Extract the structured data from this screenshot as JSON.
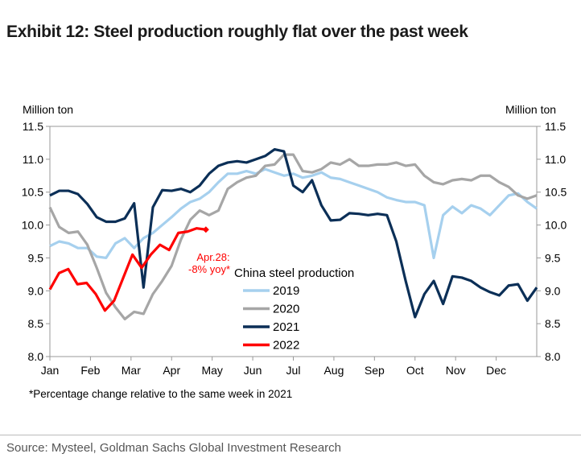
{
  "title": "Exhibit 12: Steel production roughly flat over the past week",
  "footnote": "*Percentage change relative to the same week in 2021",
  "source": "Source: Mysteel, Goldman Sachs Global Investment Research",
  "chart_data": {
    "type": "line",
    "ylabel_left": "Million ton",
    "ylabel_right": "Million ton",
    "ylim": [
      8.0,
      11.5
    ],
    "yticks": [
      "8.0",
      "8.5",
      "9.0",
      "9.5",
      "10.0",
      "10.5",
      "11.0",
      "11.5"
    ],
    "xticks": [
      "Jan",
      "Feb",
      "Mar",
      "Apr",
      "May",
      "Jun",
      "Jul",
      "Aug",
      "Sep",
      "Oct",
      "Nov",
      "Dec"
    ],
    "x_unit": "week of year (0-52)",
    "legend_title": "China steel production",
    "annotation": {
      "line1": "Apr.28:",
      "line2": "-8% yoy*",
      "color": "#ff0000"
    },
    "series": [
      {
        "name": "2019",
        "color": "#a6d0ee",
        "values": [
          9.68,
          9.75,
          9.72,
          9.65,
          9.65,
          9.52,
          9.5,
          9.72,
          9.8,
          9.65,
          9.8,
          9.88,
          10.0,
          10.12,
          10.25,
          10.35,
          10.4,
          10.5,
          10.65,
          10.78,
          10.78,
          10.82,
          10.78,
          10.85,
          10.8,
          10.75,
          10.78,
          10.72,
          10.75,
          10.8,
          10.72,
          10.7,
          10.65,
          10.6,
          10.55,
          10.5,
          10.42,
          10.38,
          10.35,
          10.35,
          10.3,
          9.5,
          10.15,
          10.28,
          10.18,
          10.3,
          10.25,
          10.15,
          10.3,
          10.45,
          10.48,
          10.35,
          10.25
        ]
      },
      {
        "name": "2020",
        "color": "#a6a6a6",
        "values": [
          10.27,
          9.97,
          9.88,
          9.9,
          9.7,
          9.35,
          8.97,
          8.75,
          8.57,
          8.68,
          8.65,
          8.95,
          9.15,
          9.38,
          9.78,
          10.08,
          10.22,
          10.15,
          10.22,
          10.55,
          10.65,
          10.72,
          10.75,
          10.9,
          10.92,
          11.07,
          11.07,
          10.82,
          10.8,
          10.85,
          10.95,
          10.92,
          11.0,
          10.9,
          10.9,
          10.92,
          10.92,
          10.95,
          10.9,
          10.92,
          10.75,
          10.65,
          10.62,
          10.68,
          10.7,
          10.68,
          10.75,
          10.75,
          10.65,
          10.58,
          10.45,
          10.4,
          10.45
        ]
      },
      {
        "name": "2021",
        "color": "#0b2f57",
        "values": [
          10.45,
          10.52,
          10.52,
          10.47,
          10.32,
          10.12,
          10.05,
          10.05,
          10.1,
          10.33,
          9.05,
          10.27,
          10.53,
          10.52,
          10.55,
          10.5,
          10.6,
          10.78,
          10.9,
          10.95,
          10.97,
          10.95,
          11.0,
          11.05,
          11.15,
          11.12,
          10.6,
          10.5,
          10.68,
          10.3,
          10.07,
          10.08,
          10.18,
          10.17,
          10.15,
          10.17,
          10.15,
          9.75,
          9.15,
          8.6,
          8.95,
          9.15,
          8.8,
          9.22,
          9.2,
          9.15,
          9.05,
          8.98,
          8.93,
          9.08,
          9.1,
          8.85,
          9.05
        ]
      },
      {
        "name": "2022",
        "color": "#ff0000",
        "values": [
          9.02,
          9.27,
          9.33,
          9.1,
          9.12,
          8.95,
          8.7,
          8.85,
          9.2,
          9.55,
          9.35,
          9.55,
          9.7,
          9.62,
          9.88,
          9.9,
          9.95,
          9.93
        ]
      }
    ]
  }
}
